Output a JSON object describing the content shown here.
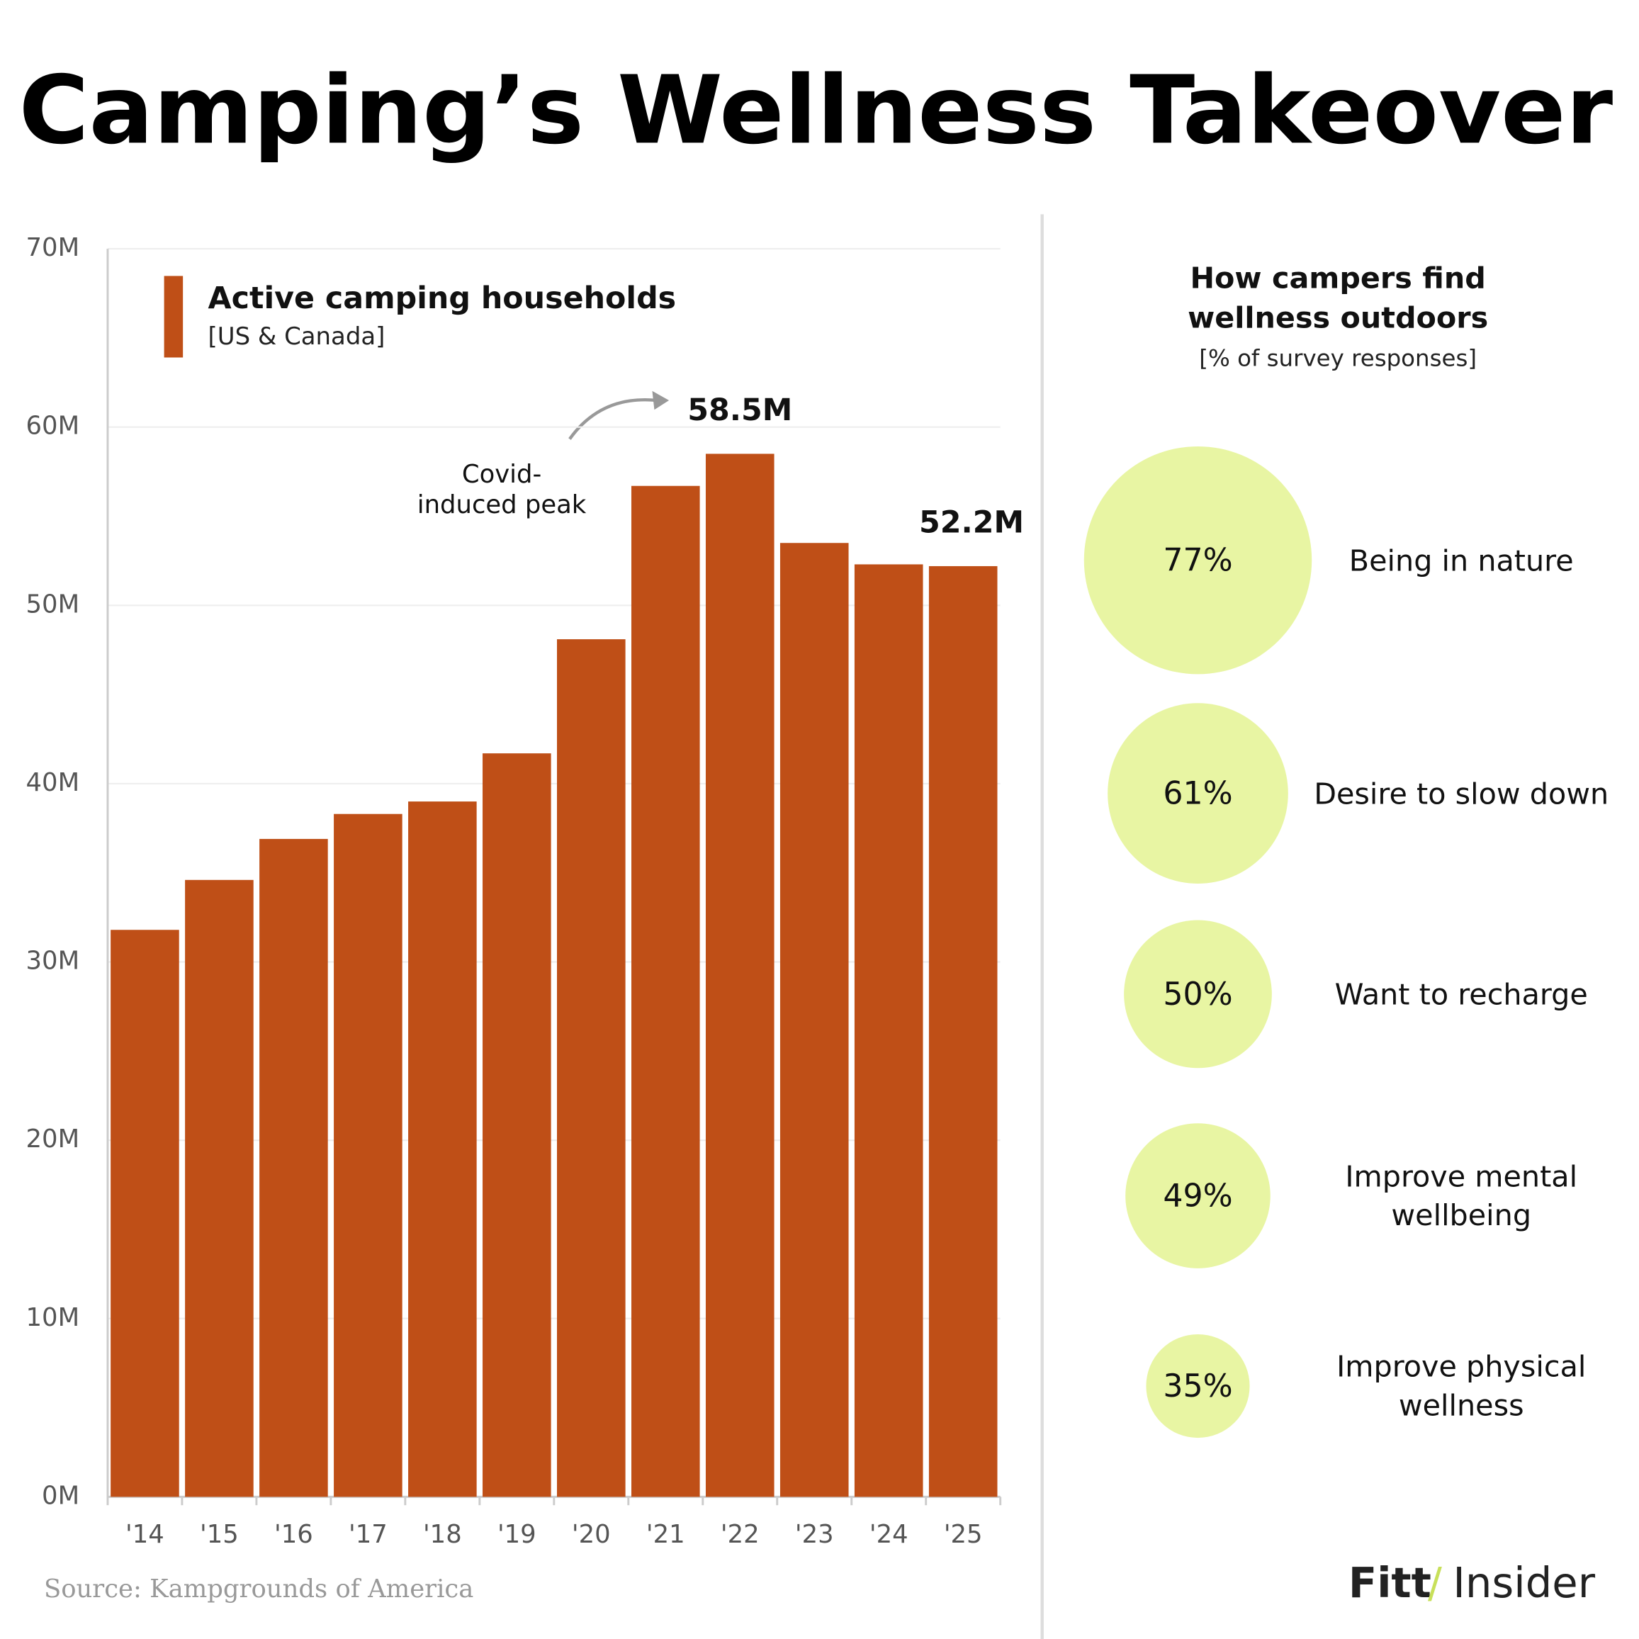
{
  "title": "Camping’s Wellness Takeover",
  "source": "Source: Kampgrounds of America",
  "brand": [
    "Fitt",
    "/",
    "Insider"
  ],
  "chart_data": [
    {
      "type": "bar",
      "series": [
        {
          "name": "Active camping households",
          "color": "#bf4f17",
          "values": [
            31.8,
            34.6,
            36.9,
            38.3,
            39.0,
            41.7,
            48.1,
            56.7,
            58.5,
            53.5,
            52.3,
            52.2
          ],
          "value_labels": [
            null,
            null,
            null,
            null,
            null,
            null,
            null,
            null,
            "58.5M",
            null,
            null,
            "52.2M"
          ]
        }
      ],
      "legend_subtitle": "[US & Canada]",
      "categories": [
        "'14",
        "'15",
        "'16",
        "'17",
        "'18",
        "'19",
        "'20",
        "'21",
        "'22",
        "'23",
        "'24",
        "'25"
      ],
      "annotation": [
        "Covid-",
        "induced peak"
      ],
      "ylim": [
        0,
        70
      ],
      "yticks": [
        {
          "value": 0,
          "label": "0M"
        },
        {
          "value": 10,
          "label": "10M"
        },
        {
          "value": 20,
          "label": "20M"
        },
        {
          "value": 30,
          "label": "30M"
        },
        {
          "value": 40,
          "label": "40M"
        },
        {
          "value": 50,
          "label": "50M"
        },
        {
          "value": 60,
          "label": "60M"
        },
        {
          "value": 70,
          "label": "70M"
        }
      ],
      "grid": true
    },
    {
      "type": "bubble",
      "title": [
        "How campers find",
        "wellness outdoors"
      ],
      "subtitle": "[% of survey responses]",
      "color": "#e8f5a3",
      "categories": [
        "Being in nature",
        "Desire to slow down",
        "Want to recharge",
        "Improve mental wellbeing",
        "Improve physical wellness"
      ],
      "values": [
        77,
        61,
        50,
        49,
        35
      ],
      "value_labels": [
        "77%",
        "61%",
        "50%",
        "49%",
        "35%"
      ]
    }
  ]
}
